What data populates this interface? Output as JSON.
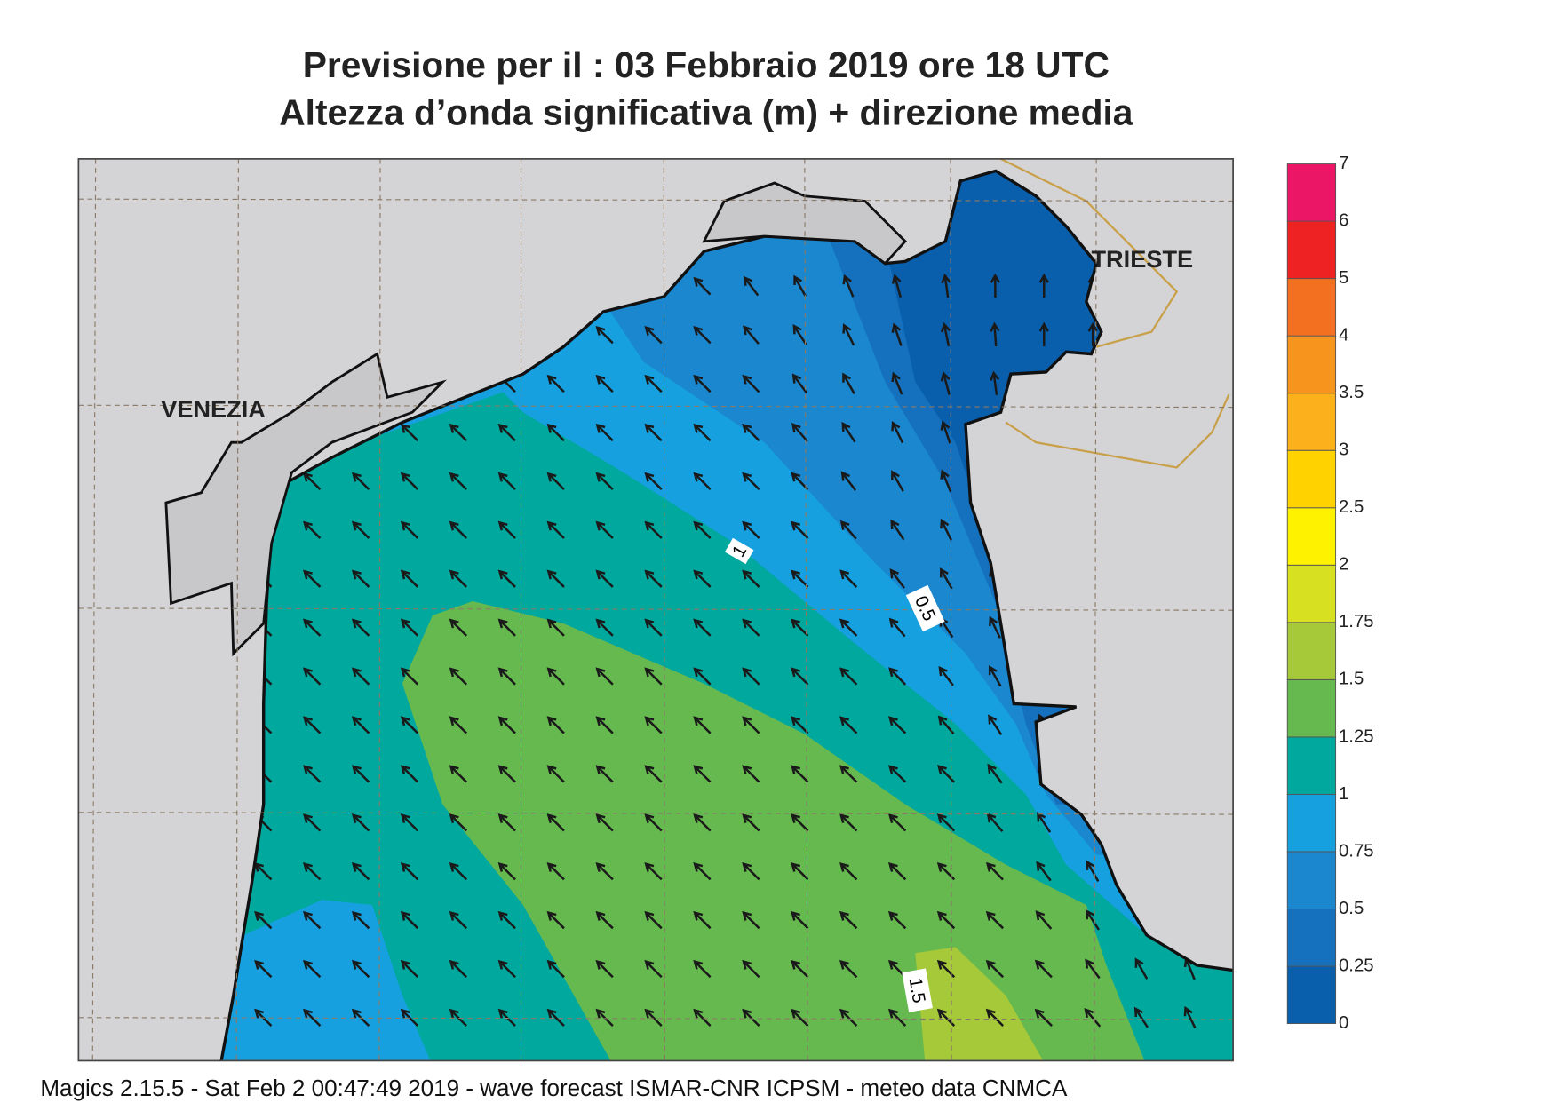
{
  "header": {
    "title": "Previsione per il  :  03  Febbraio 2019   ore 18 UTC",
    "subtitle": "Altezza d’onda significativa (m) + direzione media"
  },
  "map": {
    "places": [
      "VENEZIA",
      "TRIESTE"
    ],
    "contour_labels": [
      "1",
      "0.5",
      "1.5"
    ]
  },
  "legend": {
    "levels": [
      0,
      0.25,
      0.5,
      0.75,
      1,
      1.25,
      1.5,
      1.75,
      2,
      2.5,
      3,
      3.5,
      4,
      5,
      6,
      7
    ],
    "colors": [
      "#0a5fad",
      "#1570bd",
      "#1a87cf",
      "#16a0e0",
      "#00a89e",
      "#66b94f",
      "#a6c93a",
      "#d7e021",
      "#fff200",
      "#ffd200",
      "#fbb01c",
      "#f7941d",
      "#f37021",
      "#ee2223",
      "#ec1667"
    ]
  },
  "footer": "Magics 2.15.5 - Sat Feb  2 00:47:49 2019 - wave forecast  ISMAR-CNR  ICPSM - meteo data   CNMCA"
}
